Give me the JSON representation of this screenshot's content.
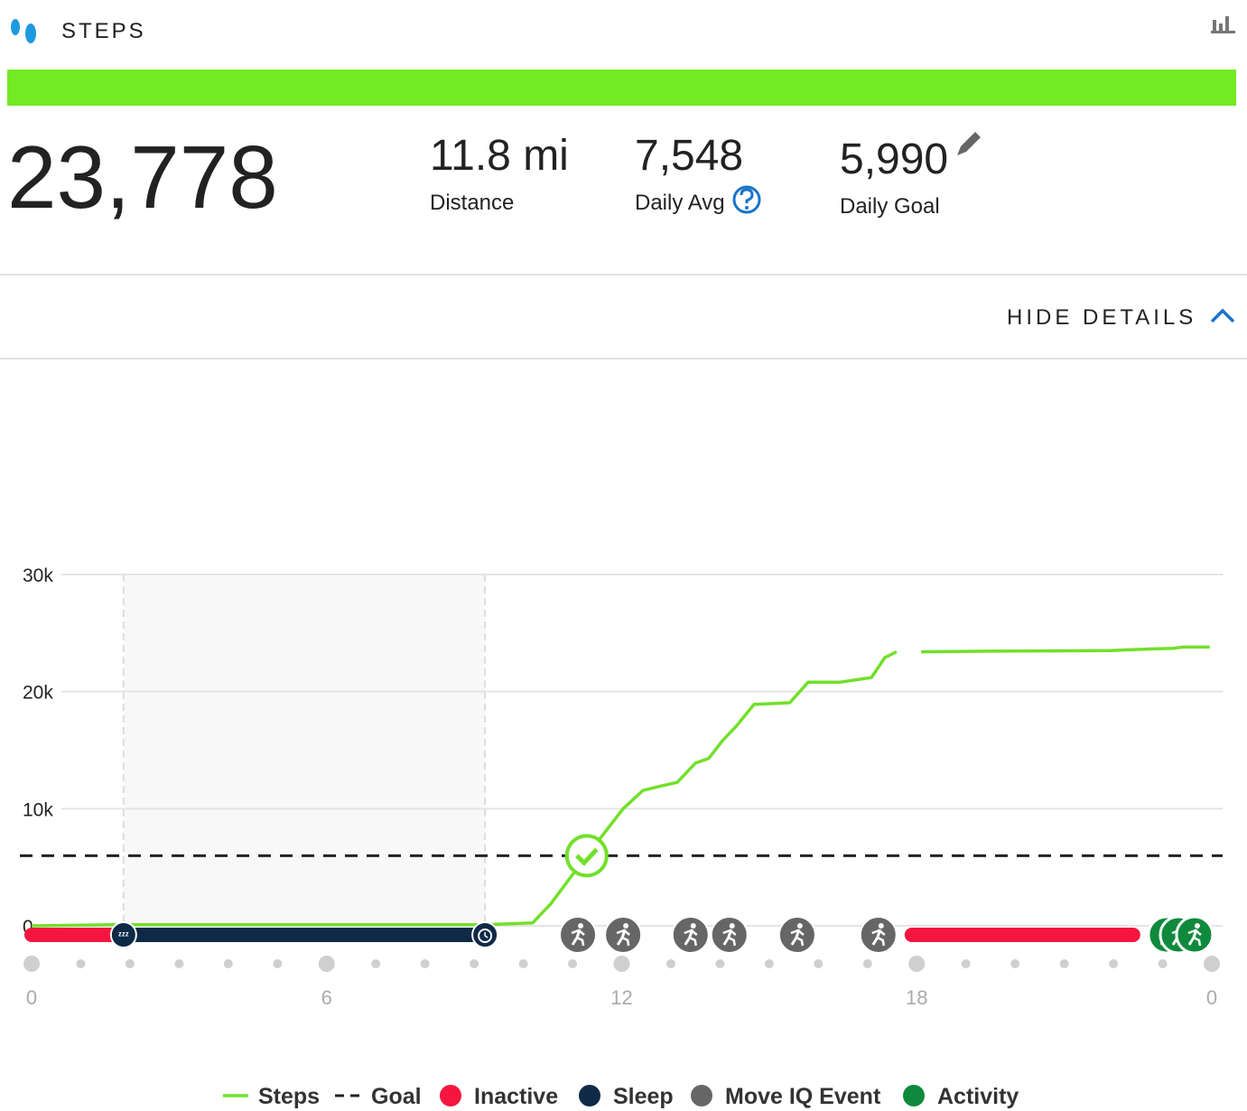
{
  "header": {
    "title": "STEPS"
  },
  "summary": {
    "steps": "23,778",
    "stats": [
      {
        "value": "11.8 mi",
        "label": "Distance"
      },
      {
        "value": "7,548",
        "label": "Daily Avg"
      },
      {
        "value": "5,990",
        "label": "Daily Goal"
      }
    ]
  },
  "toggle": "HIDE DETAILS",
  "chart_data": {
    "type": "line",
    "x": [
      0,
      1.87,
      9.22,
      10.19,
      10.56,
      11.29,
      12.03,
      12.43,
      12.76,
      13.13,
      13.5,
      13.77,
      14.05,
      14.32,
      14.69,
      15.42,
      15.79,
      16.43,
      17.08,
      17.35,
      17.59,
      17.8,
      18.09,
      19.56,
      21.94,
      22.49,
      23.23,
      23.41,
      23.96
    ],
    "series": [
      {
        "name": "Steps",
        "color": "#72e02a",
        "values": [
          0,
          100,
          100,
          250,
          1900,
          5990,
          10000,
          11550,
          11900,
          12250,
          13900,
          14300,
          15800,
          17000,
          18900,
          19050,
          20800,
          20800,
          21200,
          22900,
          23400,
          null,
          23400,
          23450,
          23500,
          23600,
          23700,
          23800,
          23800
        ]
      }
    ],
    "goal": {
      "name": "Goal",
      "value": 5990,
      "color": "#222222"
    },
    "inactive": {
      "name": "Inactive",
      "color": "#f5163f",
      "intervals": [
        [
          0,
          1.87
        ],
        [
          17.9,
          22.4
        ]
      ]
    },
    "sleep": {
      "name": "Sleep",
      "color": "#0e2a47",
      "intervals": [
        [
          1.87,
          9.22
        ]
      ]
    },
    "move_iq": {
      "name": "Move IQ Event",
      "color": "#666666",
      "x": [
        11.11,
        12.03,
        13.4,
        14.19,
        15.57,
        17.22
      ]
    },
    "activity": {
      "name": "Activity",
      "color": "#0f8a3c",
      "x": [
        23.08,
        23.32,
        23.65
      ]
    },
    "xlim": [
      0,
      24
    ],
    "xticks": [
      0,
      6,
      12,
      18,
      {
        "value": 24,
        "label": "0"
      }
    ],
    "xminorticks": [
      1,
      2,
      3,
      4,
      5,
      7,
      8,
      9,
      10,
      11,
      13,
      14,
      15,
      16,
      17,
      19,
      20,
      21,
      22,
      23
    ],
    "ylim": [
      0,
      30000
    ],
    "yticks": [
      0,
      {
        "value": 10000,
        "label": "10k"
      },
      {
        "value": 20000,
        "label": "20k"
      },
      {
        "value": 30000,
        "label": "30k"
      }
    ],
    "grid": true
  }
}
